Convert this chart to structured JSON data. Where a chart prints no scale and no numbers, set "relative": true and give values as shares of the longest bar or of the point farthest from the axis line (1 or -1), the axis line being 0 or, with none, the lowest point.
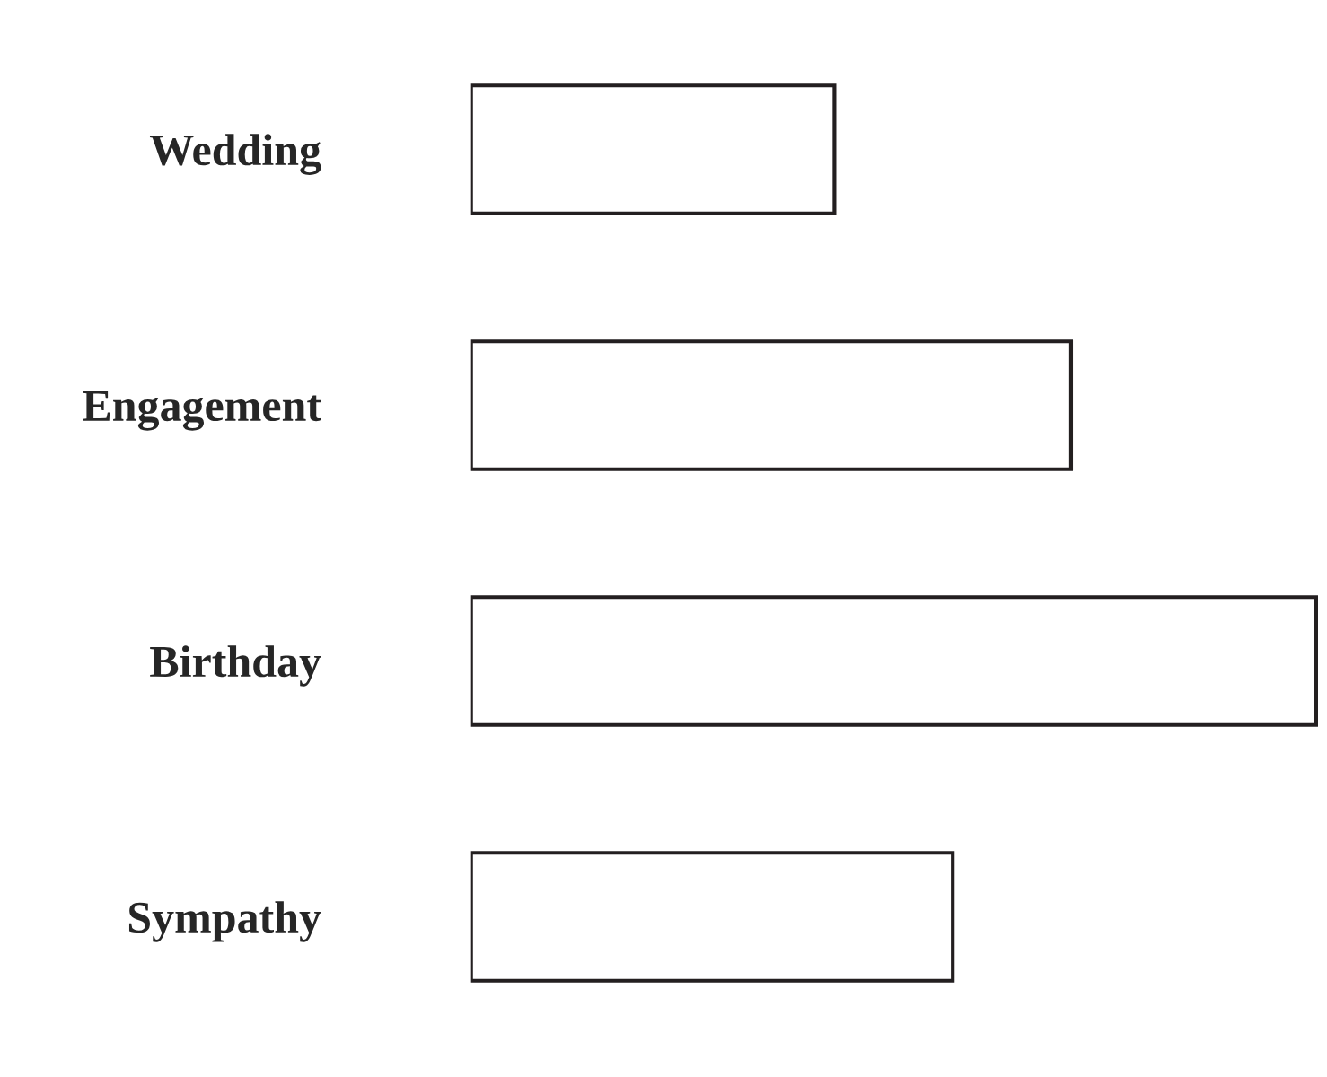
{
  "chart_data": {
    "type": "bar",
    "orientation": "horizontal",
    "relative": true,
    "categories": [
      "Wedding",
      "Engagement",
      "Birthday",
      "Sympathy"
    ],
    "values": [
      0.43,
      0.71,
      1,
      0.57
    ],
    "color": "#ffffff",
    "grid": false,
    "legend": false
  }
}
